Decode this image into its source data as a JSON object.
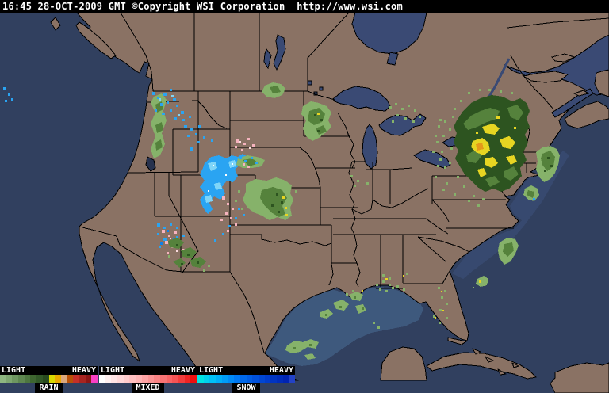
{
  "header": {
    "text": "16:45 28-OCT-2009 GMT ©Copyright WSI Corporation  http://www.wsi.com"
  },
  "colors": {
    "ocean": "#31405f",
    "land": "#8a7264",
    "lake": "#3a4a74",
    "salt_lake": "#27324e",
    "border": "#000000",
    "coverage_gulf": "#3e597d",
    "coverage_atlantic": "#37496f",
    "rain_light": "#86b26a",
    "rain_mid": "#55823c",
    "rain_dark": "#2d5420",
    "rain_yellow": "#e7d522",
    "rain_orange": "#e59a1a",
    "snow_bright": "#2aa4f2",
    "snow_light": "#7fd5f8",
    "snow_deep": "#1080e8",
    "mixed_pink": "#f5b3be",
    "mixed_light": "#fbdade",
    "white": "#ffffff"
  },
  "legend": {
    "groups": [
      {
        "name": "RAIN",
        "light_label": "LIGHT",
        "heavy_label": "HEAVY",
        "colors": [
          "#8eb680",
          "#7ea670",
          "#6e9660",
          "#5e8650",
          "#4e7640",
          "#3e6630",
          "#325828",
          "#284a1e",
          "#d8d800",
          "#e8a800",
          "#dca87c",
          "#b85008",
          "#c43028",
          "#a82420",
          "#8c1616",
          "#fb3fc4"
        ]
      },
      {
        "name": "MIXED",
        "light_label": "LIGHT",
        "heavy_label": "HEAVY",
        "colors": [
          "#ffffff",
          "#fff0f0",
          "#ffe3e4",
          "#ffd7d8",
          "#ffcbcc",
          "#ffbfc0",
          "#ffb3b4",
          "#ffa3a4",
          "#fb9394",
          "#f98384",
          "#f77374",
          "#f66364",
          "#f45354",
          "#f23c3c",
          "#f02424",
          "#ee0e0e"
        ]
      },
      {
        "name": "SNOW",
        "light_label": "LIGHT",
        "heavy_label": "HEAVY",
        "colors": [
          "#00e4e4",
          "#00d2ee",
          "#00c0f6",
          "#00aef8",
          "#009cf8",
          "#008af6",
          "#0078f2",
          "#0068ea",
          "#005ce2",
          "#0050da",
          "#0046d2",
          "#003cca",
          "#0034c2",
          "#002cba",
          "#0024b2",
          "#2342c6"
        ]
      }
    ]
  },
  "radar_regions": [
    {
      "name": "pacific-northwest-coast",
      "type": "rain"
    },
    {
      "name": "montana-idaho",
      "type": "snow"
    },
    {
      "name": "rockies-colorado",
      "type": "snow"
    },
    {
      "name": "rockies-edges",
      "type": "mixed"
    },
    {
      "name": "southwest-new-mexico",
      "type": "rain-snow-mixed"
    },
    {
      "name": "central-plains",
      "type": "rain"
    },
    {
      "name": "minnesota",
      "type": "rain"
    },
    {
      "name": "upper-michigan",
      "type": "rain"
    },
    {
      "name": "northeast",
      "type": "heavy-rain"
    },
    {
      "name": "atlantic-offshore",
      "type": "rain"
    },
    {
      "name": "southeast-gulf-coast",
      "type": "rain"
    },
    {
      "name": "gulf-of-mexico",
      "type": "rain"
    },
    {
      "name": "florida",
      "type": "rain"
    }
  ]
}
